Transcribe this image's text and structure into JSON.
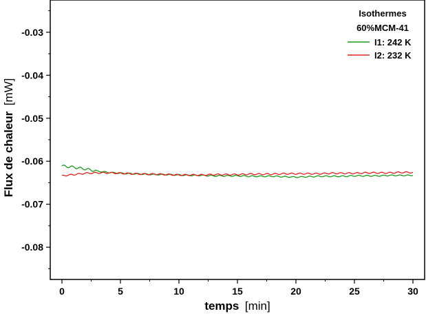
{
  "chart_data": {
    "type": "line",
    "title": "",
    "xlabel": {
      "bold": "temps",
      "unit": "[min]"
    },
    "ylabel": {
      "bold": "Flux de chaleur",
      "unit": "[mW]"
    },
    "xlim": [
      -1,
      31
    ],
    "ylim": [
      -0.0875,
      -0.0225
    ],
    "xticks": [
      0,
      5,
      10,
      15,
      20,
      25,
      30
    ],
    "xtick_labels": [
      "0",
      "5",
      "10",
      "15",
      "20",
      "25",
      "30"
    ],
    "yticks": [
      -0.03,
      -0.04,
      -0.05,
      -0.06,
      -0.07,
      -0.08
    ],
    "ytick_labels": [
      "-0.03",
      "-0.04",
      "-0.05",
      "-0.06",
      "-0.07",
      "-0.08"
    ],
    "grid": false,
    "legend": {
      "placement": "top-right",
      "title_lines": [
        "Isothermes",
        "60%MCM-41"
      ]
    },
    "series": [
      {
        "name": "I1: 242 K",
        "color": "#1a9a1a",
        "x": [
          0,
          1,
          2,
          3,
          4,
          5,
          6,
          7,
          8,
          9,
          10,
          11,
          12,
          13,
          14,
          15,
          16,
          17,
          18,
          19,
          20,
          21,
          22,
          23,
          24,
          25,
          26,
          27,
          28,
          29,
          30
        ],
        "y": [
          -0.0611,
          -0.0614,
          -0.0618,
          -0.0623,
          -0.0626,
          -0.0628,
          -0.0629,
          -0.063,
          -0.0631,
          -0.0631,
          -0.0632,
          -0.0633,
          -0.0633,
          -0.0634,
          -0.0634,
          -0.0634,
          -0.0635,
          -0.0635,
          -0.0635,
          -0.0636,
          -0.0637,
          -0.0636,
          -0.0635,
          -0.0635,
          -0.0635,
          -0.0634,
          -0.0634,
          -0.0634,
          -0.0633,
          -0.0633,
          -0.0633
        ]
      },
      {
        "name": "I2: 232 K",
        "color": "#e02020",
        "x": [
          0,
          1,
          2,
          3,
          4,
          5,
          6,
          7,
          8,
          9,
          10,
          11,
          12,
          13,
          14,
          15,
          16,
          17,
          18,
          19,
          20,
          21,
          22,
          23,
          24,
          25,
          26,
          27,
          28,
          29,
          30
        ],
        "y": [
          -0.0634,
          -0.0631,
          -0.0628,
          -0.0627,
          -0.0627,
          -0.0628,
          -0.0629,
          -0.063,
          -0.063,
          -0.0631,
          -0.0632,
          -0.0632,
          -0.0632,
          -0.0631,
          -0.0631,
          -0.0631,
          -0.063,
          -0.063,
          -0.063,
          -0.0629,
          -0.0629,
          -0.0629,
          -0.0629,
          -0.0628,
          -0.0628,
          -0.0628,
          -0.0627,
          -0.0627,
          -0.0627,
          -0.0626,
          -0.0626
        ]
      }
    ]
  }
}
